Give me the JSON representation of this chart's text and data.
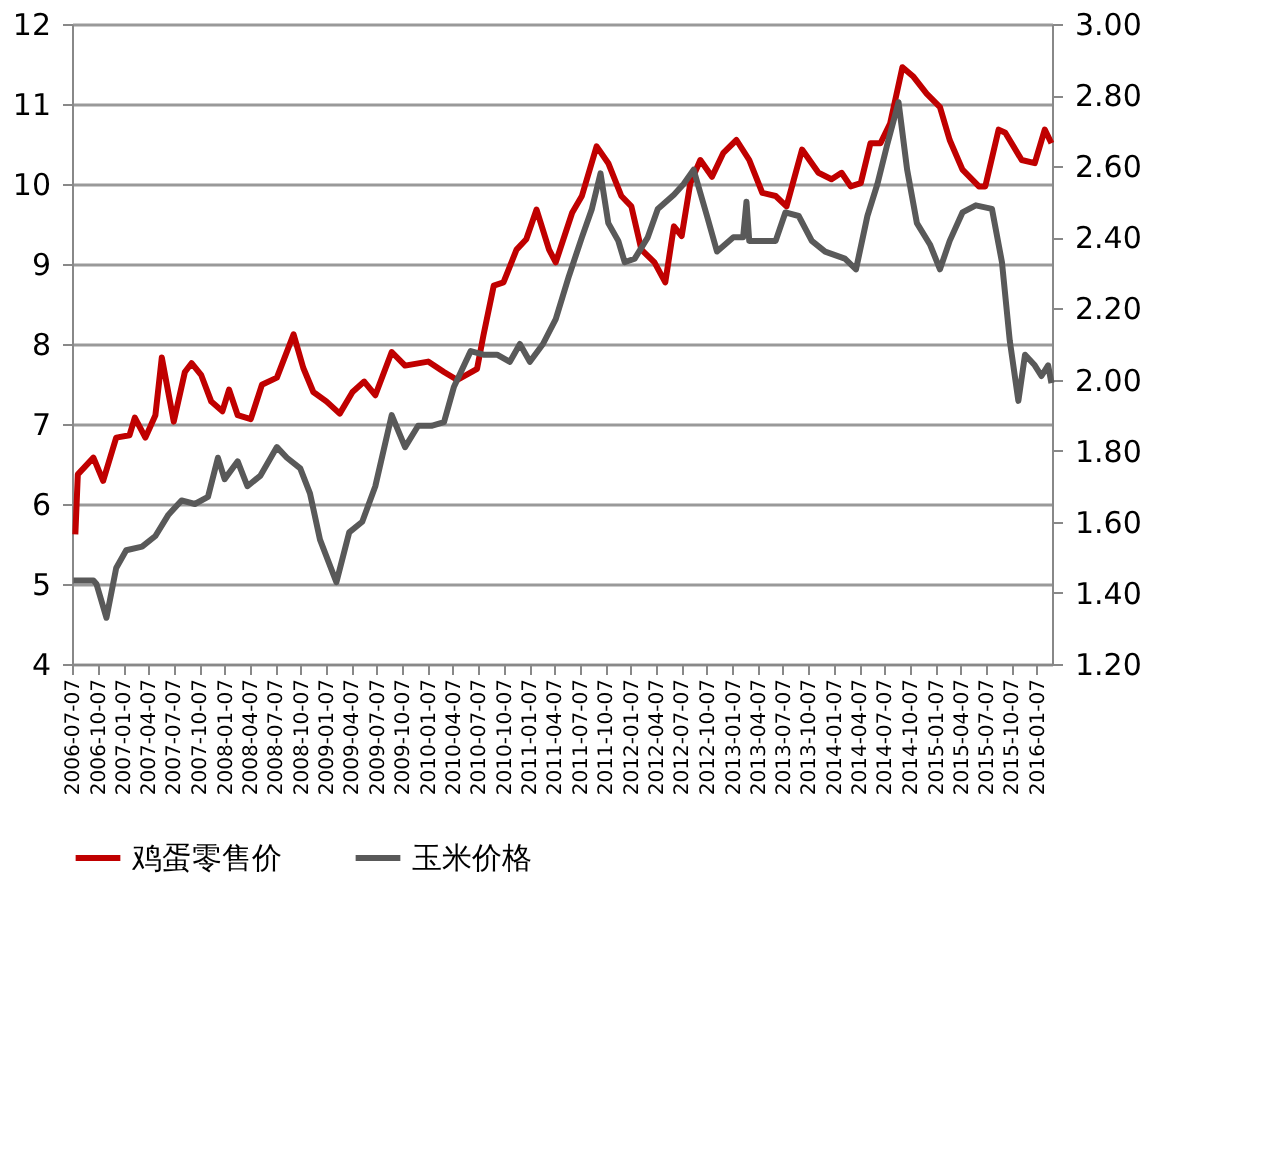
{
  "chart_data": {
    "type": "line",
    "legend": "bottom",
    "grid": "y",
    "xlim": [
      "2006-07-07",
      "2016-03-01"
    ],
    "xticks": [
      "2006-07-07",
      "2006-10-07",
      "2007-01-07",
      "2007-04-07",
      "2007-07-07",
      "2007-10-07",
      "2008-01-07",
      "2008-04-07",
      "2008-07-07",
      "2008-10-07",
      "2009-01-07",
      "2009-04-07",
      "2009-07-07",
      "2009-10-07",
      "2010-01-07",
      "2010-04-07",
      "2010-07-07",
      "2010-10-07",
      "2011-01-07",
      "2011-04-07",
      "2011-07-07",
      "2011-10-07",
      "2012-01-07",
      "2012-04-07",
      "2012-07-07",
      "2012-10-07",
      "2013-01-07",
      "2013-04-07",
      "2013-07-07",
      "2013-10-07",
      "2014-01-07",
      "2014-04-07",
      "2014-07-07",
      "2014-10-07",
      "2015-01-07",
      "2015-04-07",
      "2015-07-07",
      "2015-10-07",
      "2016-01-07"
    ],
    "ylim": [
      4,
      12
    ],
    "yticks": [
      4,
      5,
      6,
      7,
      8,
      9,
      10,
      11,
      12
    ],
    "y2lim": [
      1.2,
      3.0
    ],
    "y2ticks": [
      {
        "value": 1.2,
        "label": "1.20"
      },
      {
        "value": 1.4,
        "label": "1.40"
      },
      {
        "value": 1.6,
        "label": "1.60"
      },
      {
        "value": 1.8,
        "label": "1.80"
      },
      {
        "value": 2.0,
        "label": "2.00"
      },
      {
        "value": 2.2,
        "label": "2.20"
      },
      {
        "value": 2.4,
        "label": "2.40"
      },
      {
        "value": 2.6,
        "label": "2.60"
      },
      {
        "value": 2.8,
        "label": "2.80"
      },
      {
        "value": 3.0,
        "label": "3.00"
      }
    ],
    "series": [
      {
        "name": "鸡蛋零售价",
        "color": "#c00000",
        "x": [
          "2006-07-19",
          "2006-07-28",
          "2006-09-22",
          "2006-10-27",
          "2006-12-13",
          "2007-01-30",
          "2007-02-18",
          "2007-03-28",
          "2007-05-03",
          "2007-05-26",
          "2007-07-08",
          "2007-08-17",
          "2007-09-10",
          "2007-10-15",
          "2007-11-20",
          "2007-12-30",
          "2008-01-23",
          "2008-02-23",
          "2008-04-10",
          "2008-05-20",
          "2008-07-13",
          "2008-09-11",
          "2008-10-16",
          "2008-11-21",
          "2009-01-08",
          "2009-02-24",
          "2009-04-11",
          "2009-05-23",
          "2009-07-02",
          "2009-08-30",
          "2009-10-17",
          "2010-01-08",
          "2010-03-06",
          "2010-04-23",
          "2010-07-03",
          "2010-07-26",
          "2010-09-01",
          "2010-10-06",
          "2010-11-22",
          "2010-12-27",
          "2011-02-02",
          "2011-03-19",
          "2011-04-12",
          "2011-06-10",
          "2011-07-15",
          "2011-09-06",
          "2011-10-18",
          "2011-12-04",
          "2012-01-09",
          "2012-02-14",
          "2012-04-01",
          "2012-05-10",
          "2012-06-10",
          "2012-07-08",
          "2012-08-08",
          "2012-09-13",
          "2012-10-25",
          "2012-12-05",
          "2013-01-21",
          "2013-03-08",
          "2013-04-24",
          "2013-06-11",
          "2013-07-20",
          "2013-09-14",
          "2013-11-12",
          "2013-12-29",
          "2014-02-03",
          "2014-03-08",
          "2014-04-13",
          "2014-05-18",
          "2014-06-23",
          "2014-07-28",
          "2014-09-10",
          "2014-10-20",
          "2014-12-06",
          "2015-01-23",
          "2015-02-27",
          "2015-04-14",
          "2015-06-12",
          "2015-07-05",
          "2015-08-22",
          "2015-09-15",
          "2015-11-13",
          "2015-12-30",
          "2016-02-04",
          "2016-02-28"
        ],
        "values": [
          5.62,
          6.37,
          6.58,
          6.29,
          6.83,
          6.86,
          7.08,
          6.83,
          7.11,
          7.83,
          7.03,
          7.65,
          7.76,
          7.61,
          7.28,
          7.16,
          7.43,
          7.11,
          7.06,
          7.49,
          7.58,
          8.12,
          7.7,
          7.4,
          7.28,
          7.13,
          7.4,
          7.53,
          7.36,
          7.9,
          7.73,
          7.78,
          7.65,
          7.55,
          7.69,
          8.11,
          8.73,
          8.77,
          9.18,
          9.31,
          9.68,
          9.18,
          9.02,
          9.64,
          9.85,
          10.47,
          10.26,
          9.85,
          9.72,
          9.18,
          9.02,
          8.77,
          9.47,
          9.35,
          10.01,
          10.3,
          10.09,
          10.39,
          10.55,
          10.3,
          9.89,
          9.85,
          9.72,
          10.43,
          10.14,
          10.06,
          10.14,
          9.97,
          10.01,
          10.51,
          10.51,
          10.76,
          11.46,
          11.34,
          11.13,
          10.96,
          10.55,
          10.18,
          9.97,
          9.97,
          10.68,
          10.64,
          10.3,
          10.26,
          10.68,
          10.51
        ]
      },
      {
        "name": "玉米价格",
        "color": "#595959",
        "axis": "y2",
        "x": [
          "2006-07-12",
          "2006-09-22",
          "2006-10-03",
          "2006-11-08",
          "2006-12-13",
          "2007-01-18",
          "2007-03-16",
          "2007-05-03",
          "2007-06-19",
          "2007-08-05",
          "2007-09-22",
          "2007-11-08",
          "2007-12-14",
          "2008-01-07",
          "2008-02-23",
          "2008-03-29",
          "2008-05-15",
          "2008-07-13",
          "2008-08-18",
          "2008-10-05",
          "2008-11-09",
          "2008-12-15",
          "2009-02-12",
          "2009-03-30",
          "2009-05-16",
          "2009-07-02",
          "2009-08-30",
          "2009-10-17",
          "2009-12-03",
          "2010-01-20",
          "2010-03-06",
          "2010-04-11",
          "2010-06-10",
          "2010-07-26",
          "2010-09-13",
          "2010-10-29",
          "2010-12-04",
          "2011-01-09",
          "2011-02-25",
          "2011-04-12",
          "2011-05-29",
          "2011-07-15",
          "2011-08-20",
          "2011-09-20",
          "2011-10-18",
          "2011-11-23",
          "2011-12-16",
          "2012-01-21",
          "2012-03-08",
          "2012-04-13",
          "2012-06-10",
          "2012-07-15",
          "2012-08-20",
          "2012-10-07",
          "2012-11-12",
          "2013-01-10",
          "2013-02-14",
          "2013-02-26",
          "2013-03-08",
          "2013-04-24",
          "2013-06-11",
          "2013-07-16",
          "2013-09-02",
          "2013-10-19",
          "2013-12-06",
          "2014-02-15",
          "2014-03-27",
          "2014-05-07",
          "2014-06-12",
          "2014-07-17",
          "2014-08-27",
          "2014-09-27",
          "2014-11-01",
          "2014-12-18",
          "2015-01-23",
          "2015-02-27",
          "2015-04-14",
          "2015-06-01",
          "2015-07-29",
          "2015-09-03",
          "2015-10-01",
          "2015-11-01",
          "2015-11-25",
          "2015-12-30",
          "2016-01-23",
          "2016-02-16",
          "2016-02-28"
        ],
        "values": [
          1.435,
          1.435,
          1.425,
          1.33,
          1.47,
          1.52,
          1.53,
          1.56,
          1.62,
          1.66,
          1.65,
          1.67,
          1.78,
          1.72,
          1.77,
          1.7,
          1.73,
          1.81,
          1.78,
          1.75,
          1.68,
          1.55,
          1.43,
          1.57,
          1.6,
          1.7,
          1.9,
          1.81,
          1.87,
          1.87,
          1.88,
          1.98,
          2.08,
          2.07,
          2.07,
          2.05,
          2.1,
          2.05,
          2.1,
          2.17,
          2.29,
          2.4,
          2.48,
          2.58,
          2.44,
          2.39,
          2.33,
          2.34,
          2.4,
          2.48,
          2.52,
          2.55,
          2.59,
          2.46,
          2.36,
          2.4,
          2.4,
          2.5,
          2.39,
          2.39,
          2.39,
          2.47,
          2.46,
          2.39,
          2.36,
          2.34,
          2.31,
          2.46,
          2.55,
          2.66,
          2.78,
          2.59,
          2.44,
          2.38,
          2.31,
          2.39,
          2.47,
          2.49,
          2.48,
          2.33,
          2.11,
          1.94,
          2.07,
          2.04,
          2.01,
          2.04,
          1.99
        ]
      }
    ]
  }
}
